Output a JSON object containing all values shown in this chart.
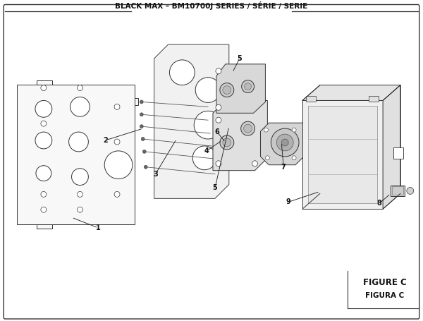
{
  "title": "BLACK MAX – BM10700J SERIES / SÉRIE / SERIE",
  "figure_label": "FIGURE C",
  "figura_label": "FIGURA C",
  "bg_color": "#ffffff",
  "line_color": "#333333",
  "text_color": "#111111",
  "fill_light": "#f5f5f5",
  "fill_mid": "#e8e8e8",
  "fill_dark": "#d8d8d8"
}
